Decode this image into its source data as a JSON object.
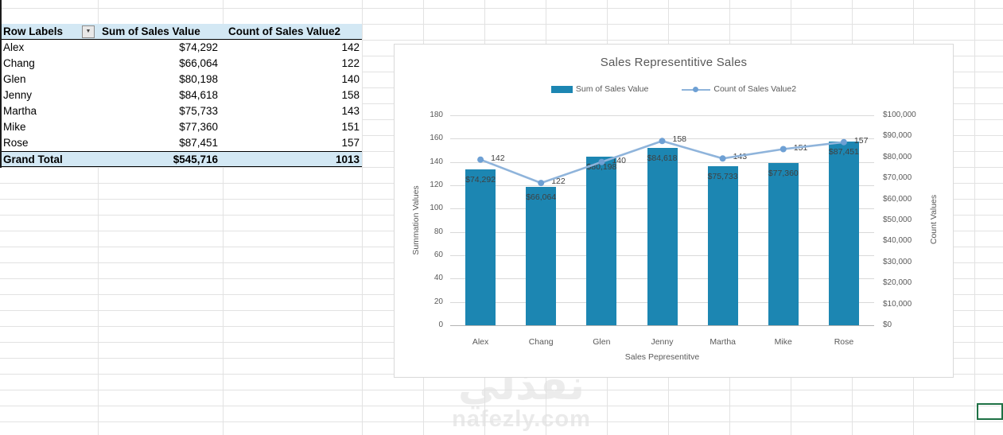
{
  "pivot_table": {
    "columns": [
      "Row Labels",
      "Sum of Sales Value",
      "Count of Sales Value2"
    ],
    "filter_icon": "▼",
    "rows": [
      [
        "Alex",
        "$74,292",
        "142"
      ],
      [
        "Chang",
        "$66,064",
        "122"
      ],
      [
        "Glen",
        "$80,198",
        "140"
      ],
      [
        "Jenny",
        "$84,618",
        "158"
      ],
      [
        "Martha",
        "$75,733",
        "143"
      ],
      [
        "Mike",
        "$77,360",
        "151"
      ],
      [
        "Rose",
        "$87,451",
        "157"
      ]
    ],
    "grand_total": [
      "Grand Total",
      "$545,716",
      "1013"
    ]
  },
  "chart_data": {
    "type": "combo-bar-line",
    "title": "Sales Representitive Sales",
    "categories": [
      "Alex",
      "Chang",
      "Glen",
      "Jenny",
      "Martha",
      "Mike",
      "Rose"
    ],
    "series": [
      {
        "name": "Sum of Sales Value",
        "type": "bar",
        "axis": "right",
        "values": [
          74292,
          66064,
          80198,
          84618,
          75733,
          77360,
          87451
        ],
        "value_labels": [
          "$74,292",
          "$66,064",
          "$80,198",
          "$84,618",
          "$75,733",
          "$77,360",
          "$87,451"
        ],
        "color": "#1c86b2"
      },
      {
        "name": "Count of Sales Value2",
        "type": "line",
        "axis": "left",
        "values": [
          142,
          122,
          140,
          158,
          143,
          151,
          157
        ],
        "value_labels": [
          "142",
          "122",
          "140",
          "158",
          "143",
          "151",
          "157"
        ],
        "color": "#8fb4db",
        "marker_color": "#6ea0d4"
      }
    ],
    "left_axis": {
      "title": "Summation Values",
      "min": 0,
      "max": 180,
      "ticks": [
        "180",
        "160",
        "140",
        "120",
        "100",
        "80",
        "60",
        "40",
        "20",
        "0"
      ]
    },
    "right_axis": {
      "title": "Count Values",
      "min": 0,
      "max": 100000,
      "ticks": [
        "$100,000",
        "$90,000",
        "$80,000",
        "$70,000",
        "$60,000",
        "$50,000",
        "$40,000",
        "$30,000",
        "$20,000",
        "$10,000",
        "$0"
      ]
    },
    "x_axis": {
      "title": "Sales Pepresentitve"
    },
    "legend_position": "top",
    "grid": true
  },
  "watermark": {
    "logo": "نفذلي",
    "site": "nafezly.com"
  },
  "colors": {
    "bar": "#1c86b2",
    "line": "#8fb4db",
    "marker": "#6ea0d4",
    "pivot_header_fill": "#d3e8f4",
    "grid": "#e2e2e2",
    "chart_text": "#595959",
    "data_label": "#404040",
    "selection": "#1e7145"
  }
}
